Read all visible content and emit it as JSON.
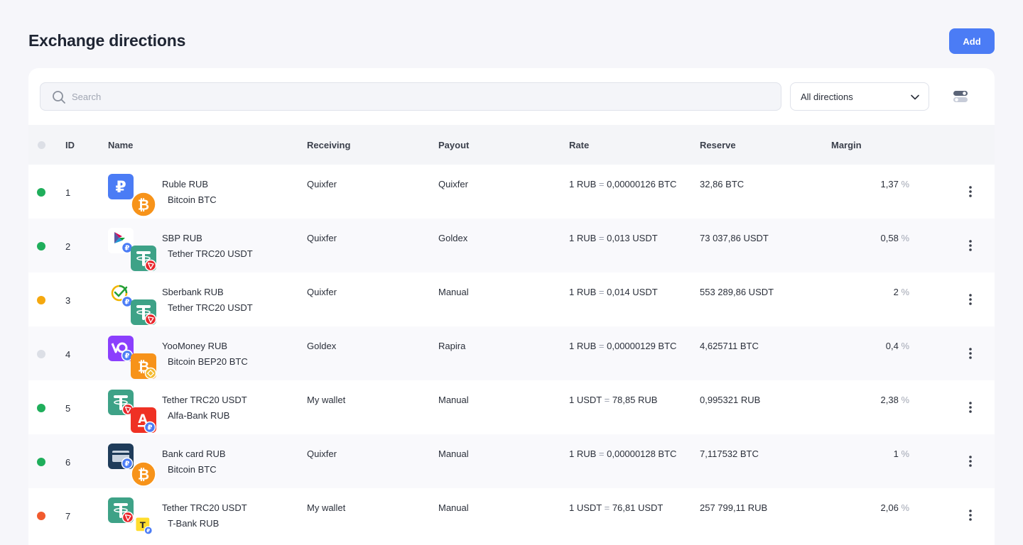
{
  "header": {
    "title": "Exchange directions",
    "add_label": "Add"
  },
  "search": {
    "placeholder": "Search",
    "value": ""
  },
  "filter": {
    "selected": "All directions"
  },
  "columns": {
    "id": "ID",
    "name": "Name",
    "receiving": "Receiving",
    "payout": "Payout",
    "rate": "Rate",
    "reserve": "Reserve",
    "margin": "Margin"
  },
  "colors": {
    "accent": "#4b7cf5",
    "active": "#1fae5b",
    "paused": "#f5a80f",
    "disabled": "#dcdfe6",
    "error": "#f15a2e"
  },
  "rows": [
    {
      "status": "active",
      "status_color": "#1fae5b",
      "id": "1",
      "from": "Ruble RUB",
      "to": "Bitcoin BTC",
      "from_icon": "ruble-icon",
      "to_icon": "bitcoin-icon",
      "receiving": "Quixfer",
      "payout": "Quixfer",
      "rate_left": "1 RUB",
      "rate_right": "0,00000126 BTC",
      "reserve": "32,86 BTC",
      "margin": "1,37"
    },
    {
      "status": "active",
      "status_color": "#1fae5b",
      "id": "2",
      "from": "SBP RUB",
      "to": "Tether TRC20 USDT",
      "from_icon": "sbp-icon",
      "to_icon": "tether-trc20-icon",
      "receiving": "Quixfer",
      "payout": "Goldex",
      "rate_left": "1 RUB",
      "rate_right": "0,013  USDT",
      "reserve": "73 037,86 USDT",
      "margin": "0,58"
    },
    {
      "status": "paused",
      "status_color": "#f5a80f",
      "id": "3",
      "from": "Sberbank RUB",
      "to": "Tether TRC20 USDT",
      "from_icon": "sberbank-icon",
      "to_icon": "tether-trc20-icon",
      "receiving": "Quixfer",
      "payout": "Manual",
      "rate_left": "1 RUB",
      "rate_right": "0,014  USDT",
      "reserve": "553 289,86 USDT",
      "margin": "2"
    },
    {
      "status": "disabled",
      "status_color": "#dcdfe6",
      "id": "4",
      "from": "YooMoney RUB",
      "to": "Bitcoin BEP20 BTC",
      "from_icon": "yoomoney-icon",
      "to_icon": "bitcoin-bep20-icon",
      "receiving": "Goldex",
      "payout": "Rapira",
      "rate_left": "1 RUB",
      "rate_right": "0,00000129 BTC",
      "reserve": "4,625711 BTC",
      "margin": "0,4"
    },
    {
      "status": "active",
      "status_color": "#1fae5b",
      "id": "5",
      "from": "Tether TRC20 USDT",
      "to": "Alfa-Bank RUB",
      "from_icon": "tether-trc20-icon",
      "to_icon": "alfa-bank-icon",
      "receiving": "My wallet",
      "payout": "Manual",
      "rate_left": "1 USDT",
      "rate_right": "78,85  RUB",
      "reserve": "0,995321 RUB",
      "margin": "2,38"
    },
    {
      "status": "active",
      "status_color": "#1fae5b",
      "id": "6",
      "from": "Bank card RUB",
      "to": "Bitcoin BTC",
      "from_icon": "bank-card-icon",
      "to_icon": "bitcoin-icon",
      "receiving": "Quixfer",
      "payout": "Manual",
      "rate_left": "1 RUB",
      "rate_right": "0,00000128 BTC",
      "reserve": "7,117532 BTC",
      "margin": "1"
    },
    {
      "status": "error",
      "status_color": "#f15a2e",
      "id": "7",
      "from": "Tether TRC20 USDT",
      "to": "T-Bank RUB",
      "from_icon": "tether-trc20-icon",
      "to_icon": "t-bank-icon",
      "receiving": "My wallet",
      "payout": "Manual",
      "rate_left": "1 USDT",
      "rate_right": "76,81  USDT",
      "reserve": "257 799,11 RUB",
      "margin": "2,06"
    }
  ]
}
